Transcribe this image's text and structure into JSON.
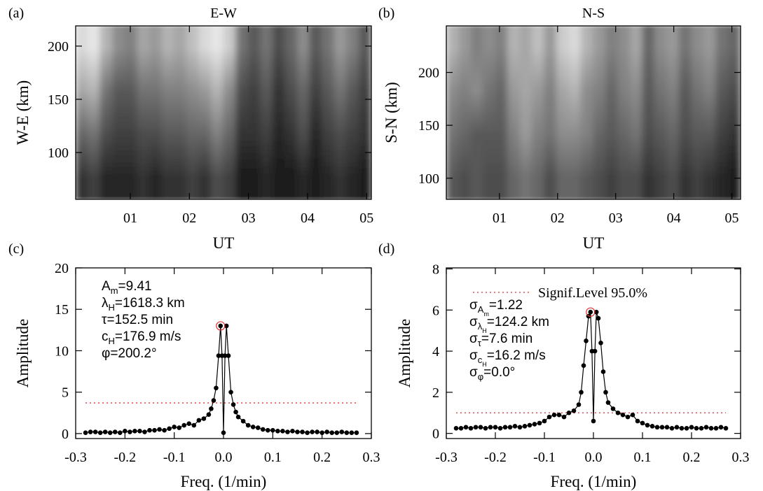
{
  "chart_data": [
    {
      "type": "heatmap",
      "panel_label": "(a)",
      "title": "E-W",
      "y_label": "W-E (km)",
      "x_label": "UT",
      "xlim": [
        0.075,
        5.08
      ],
      "ylim": [
        56,
        219
      ],
      "xticks": [
        {
          "value": 1,
          "label": "01"
        },
        {
          "value": 2,
          "label": "02"
        },
        {
          "value": 3,
          "label": "03"
        },
        {
          "value": 4,
          "label": "04"
        },
        {
          "value": 5,
          "label": "05"
        }
      ],
      "yticks": [
        100,
        150,
        200
      ],
      "z": [
        [
          0.85,
          0.65,
          0.4,
          0.2
        ],
        [
          0.9,
          0.7,
          0.45,
          0.25
        ],
        [
          0.7,
          0.45,
          0.3,
          0.15
        ],
        [
          0.55,
          0.35,
          0.25,
          0.15
        ],
        [
          0.5,
          0.35,
          0.25,
          0.15
        ],
        [
          0.65,
          0.45,
          0.3,
          0.2
        ],
        [
          0.6,
          0.45,
          0.3,
          0.15
        ],
        [
          0.7,
          0.5,
          0.35,
          0.2
        ],
        [
          0.65,
          0.5,
          0.35,
          0.2
        ],
        [
          0.75,
          0.55,
          0.4,
          0.25
        ],
        [
          0.85,
          0.6,
          0.4,
          0.2
        ],
        [
          0.9,
          0.7,
          0.5,
          0.3
        ],
        [
          0.8,
          0.55,
          0.4,
          0.25
        ],
        [
          0.45,
          0.3,
          0.2,
          0.1
        ],
        [
          0.35,
          0.25,
          0.2,
          0.1
        ],
        [
          0.45,
          0.35,
          0.25,
          0.15
        ],
        [
          0.3,
          0.2,
          0.15,
          0.1
        ],
        [
          0.4,
          0.3,
          0.2,
          0.1
        ],
        [
          0.55,
          0.4,
          0.3,
          0.15
        ],
        [
          0.35,
          0.25,
          0.15,
          0.1
        ],
        [
          0.45,
          0.35,
          0.25,
          0.15
        ],
        [
          0.6,
          0.45,
          0.3,
          0.2
        ],
        [
          0.5,
          0.35,
          0.25,
          0.15
        ],
        [
          0.35,
          0.25,
          0.2,
          0.1
        ]
      ]
    },
    {
      "type": "heatmap",
      "panel_label": "(b)",
      "title": "N-S",
      "y_label": "S-N (km)",
      "x_label": "UT",
      "xlim": [
        0.085,
        5.15
      ],
      "ylim": [
        80,
        244
      ],
      "xticks": [
        {
          "value": 1,
          "label": "01"
        },
        {
          "value": 2,
          "label": "02"
        },
        {
          "value": 3,
          "label": "03"
        },
        {
          "value": 4,
          "label": "04"
        },
        {
          "value": 5,
          "label": "05"
        }
      ],
      "yticks": [
        100,
        150,
        200
      ],
      "z": [
        [
          0.7,
          0.55,
          0.45,
          0.35
        ],
        [
          0.6,
          0.5,
          0.4,
          0.3
        ],
        [
          0.5,
          0.55,
          0.35,
          0.35
        ],
        [
          0.55,
          0.45,
          0.35,
          0.3
        ],
        [
          0.5,
          0.4,
          0.35,
          0.3
        ],
        [
          0.7,
          0.6,
          0.5,
          0.4
        ],
        [
          0.65,
          0.65,
          0.6,
          0.45
        ],
        [
          0.75,
          0.6,
          0.5,
          0.4
        ],
        [
          0.6,
          0.5,
          0.45,
          0.3
        ],
        [
          0.8,
          0.65,
          0.55,
          0.4
        ],
        [
          0.85,
          0.7,
          0.55,
          0.4
        ],
        [
          0.7,
          0.55,
          0.5,
          0.35
        ],
        [
          0.6,
          0.5,
          0.4,
          0.3
        ],
        [
          0.5,
          0.4,
          0.35,
          0.25
        ],
        [
          0.55,
          0.5,
          0.4,
          0.3
        ],
        [
          0.65,
          0.55,
          0.45,
          0.3
        ],
        [
          0.4,
          0.35,
          0.3,
          0.2
        ],
        [
          0.55,
          0.45,
          0.35,
          0.25
        ],
        [
          0.6,
          0.5,
          0.4,
          0.3
        ],
        [
          0.45,
          0.35,
          0.3,
          0.2
        ],
        [
          0.55,
          0.45,
          0.35,
          0.25
        ],
        [
          0.6,
          0.5,
          0.35,
          0.2
        ],
        [
          0.45,
          0.35,
          0.25,
          0.15
        ],
        [
          0.4,
          0.3,
          0.2,
          0.1
        ]
      ]
    },
    {
      "type": "line",
      "panel_label": "(c)",
      "y_label": "Amplitude",
      "x_label": "Freq. (1/min)",
      "xlim": [
        -0.3,
        0.3
      ],
      "ylim": [
        -0.6,
        20
      ],
      "xticks": [
        -0.3,
        -0.2,
        -0.1,
        {
          "value": 0,
          "label": "0.0"
        },
        0.1,
        0.2,
        0.3
      ],
      "yticks": [
        0,
        5,
        10,
        15,
        20
      ],
      "threshold": 3.7,
      "threshold_color": "#e03030",
      "color": "#000000",
      "peak": {
        "x": -0.006,
        "y": 13.0
      },
      "annotations": [
        [
          {
            "text": "A"
          },
          {
            "text": "m",
            "level": 1
          },
          {
            "text": "=9.41"
          }
        ],
        [
          {
            "text": "λ"
          },
          {
            "text": "H",
            "level": 1
          },
          {
            "text": "=1618.3 km"
          }
        ],
        [
          {
            "text": "τ"
          },
          {
            "text": "=152.5 min"
          }
        ],
        [
          {
            "text": "c"
          },
          {
            "text": "H",
            "level": 1
          },
          {
            "text": "=176.9 m/s"
          }
        ],
        [
          {
            "text": "φ"
          },
          {
            "text": "=200.2°"
          }
        ]
      ],
      "x": [
        -0.28,
        -0.27,
        -0.26,
        -0.25,
        -0.24,
        -0.23,
        -0.22,
        -0.21,
        -0.2,
        -0.19,
        -0.18,
        -0.17,
        -0.16,
        -0.15,
        -0.14,
        -0.13,
        -0.12,
        -0.11,
        -0.1,
        -0.09,
        -0.08,
        -0.07,
        -0.06,
        -0.05,
        -0.04,
        -0.03,
        -0.025,
        -0.02,
        -0.015,
        -0.01,
        -0.006,
        -0.003,
        0,
        0.003,
        0.006,
        0.01,
        0.015,
        0.02,
        0.025,
        0.03,
        0.04,
        0.05,
        0.06,
        0.07,
        0.08,
        0.09,
        0.1,
        0.11,
        0.12,
        0.13,
        0.14,
        0.15,
        0.16,
        0.17,
        0.18,
        0.19,
        0.2,
        0.21,
        0.22,
        0.23,
        0.24,
        0.25,
        0.26,
        0.27
      ],
      "values": [
        0.1,
        0.2,
        0.2,
        0.1,
        0.2,
        0.1,
        0.2,
        0.1,
        0.3,
        0.2,
        0.3,
        0.3,
        0.2,
        0.4,
        0.4,
        0.5,
        0.4,
        0.6,
        0.8,
        0.7,
        1.0,
        1.2,
        1.0,
        1.6,
        1.8,
        2.3,
        3.0,
        4.0,
        5.5,
        9.4,
        13.0,
        9.4,
        0.1,
        9.4,
        13.0,
        9.4,
        5.0,
        3.5,
        2.6,
        2.0,
        1.5,
        1.0,
        0.8,
        0.7,
        0.5,
        0.4,
        0.4,
        0.3,
        0.3,
        0.2,
        0.3,
        0.2,
        0.2,
        0.1,
        0.2,
        0.2,
        0.1,
        0.2,
        0.1,
        0.1,
        0.2,
        0.1,
        0.1,
        0.1
      ]
    },
    {
      "type": "line",
      "panel_label": "(d)",
      "y_label": "Amplitude",
      "x_label": "Freq. (1/min)",
      "xlim": [
        -0.3,
        0.3
      ],
      "ylim": [
        -0.25,
        8.05
      ],
      "xticks": [
        -0.3,
        -0.2,
        -0.1,
        {
          "value": 0,
          "label": "0.0"
        },
        0.1,
        0.2,
        0.3
      ],
      "yticks": [
        0,
        2,
        4,
        6,
        8
      ],
      "threshold": 1.0,
      "threshold_color": "#e03030",
      "threshold_label": "Signif.Level 95.0%",
      "color": "#000000",
      "peak": {
        "x": -0.006,
        "y": 5.9
      },
      "annotations": [
        [
          {
            "text": "σ"
          },
          {
            "text": "A",
            "level": 1
          },
          {
            "text": "m",
            "level": 2
          },
          {
            "text": "=1.22"
          }
        ],
        [
          {
            "text": "σ"
          },
          {
            "text": "λ",
            "level": 1
          },
          {
            "text": "H",
            "level": 2
          },
          {
            "text": "=124.2 km"
          }
        ],
        [
          {
            "text": "σ"
          },
          {
            "text": "τ",
            "level": 1
          },
          {
            "text": "=7.6 min"
          }
        ],
        [
          {
            "text": "σ"
          },
          {
            "text": "c",
            "level": 1
          },
          {
            "text": "H",
            "level": 2
          },
          {
            "text": "=16.2 m/s"
          }
        ],
        [
          {
            "text": "σ"
          },
          {
            "text": "φ",
            "level": 1
          },
          {
            "text": "=0.0°"
          }
        ]
      ],
      "x": [
        -0.28,
        -0.27,
        -0.26,
        -0.25,
        -0.24,
        -0.23,
        -0.22,
        -0.21,
        -0.2,
        -0.19,
        -0.18,
        -0.17,
        -0.16,
        -0.15,
        -0.14,
        -0.13,
        -0.12,
        -0.11,
        -0.1,
        -0.09,
        -0.08,
        -0.07,
        -0.06,
        -0.05,
        -0.04,
        -0.03,
        -0.025,
        -0.02,
        -0.015,
        -0.01,
        -0.006,
        -0.003,
        0,
        0.003,
        0.006,
        0.01,
        0.015,
        0.02,
        0.025,
        0.03,
        0.04,
        0.05,
        0.06,
        0.07,
        0.08,
        0.09,
        0.1,
        0.11,
        0.12,
        0.13,
        0.14,
        0.15,
        0.16,
        0.17,
        0.18,
        0.19,
        0.2,
        0.21,
        0.22,
        0.23,
        0.24,
        0.25,
        0.26,
        0.27
      ],
      "values": [
        0.25,
        0.25,
        0.3,
        0.25,
        0.3,
        0.3,
        0.25,
        0.3,
        0.3,
        0.25,
        0.3,
        0.3,
        0.35,
        0.3,
        0.35,
        0.4,
        0.45,
        0.5,
        0.6,
        0.8,
        0.9,
        0.9,
        0.8,
        1.0,
        1.1,
        1.4,
        2.0,
        3.3,
        4.5,
        5.7,
        5.9,
        4.0,
        0.6,
        4.0,
        5.9,
        5.6,
        4.4,
        3.0,
        2.0,
        1.5,
        1.2,
        1.0,
        0.9,
        0.8,
        0.9,
        0.6,
        0.5,
        0.4,
        0.35,
        0.3,
        0.3,
        0.3,
        0.25,
        0.3,
        0.25,
        0.25,
        0.3,
        0.25,
        0.25,
        0.3,
        0.25,
        0.25,
        0.3,
        0.25
      ]
    }
  ]
}
